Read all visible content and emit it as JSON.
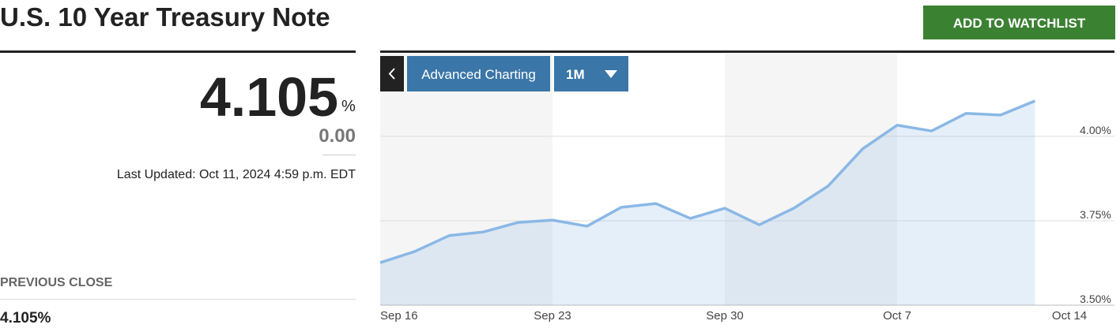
{
  "header": {
    "title": "U.S. 10 Year Treasury Note",
    "button": "ADD TO WATCHLIST"
  },
  "quote": {
    "price": "4.105",
    "unit": "%",
    "change": "0.00",
    "updated": "Last Updated: Oct 11, 2024 4:59 p.m. EDT"
  },
  "previous_close": {
    "label": "PREVIOUS CLOSE",
    "value": "4.105%"
  },
  "toolbar": {
    "advanced": "Advanced Charting",
    "range": "1M"
  },
  "chart_data": {
    "type": "area",
    "categories": [
      "Sep 16",
      null,
      null,
      null,
      null,
      "Sep 23",
      null,
      null,
      null,
      null,
      "Sep 30",
      null,
      null,
      null,
      null,
      "Oct 7",
      null,
      null,
      null,
      null,
      "Oct 14"
    ],
    "series": [
      {
        "name": null,
        "color": "#8ab8e6",
        "values": [
          3.626,
          3.659,
          3.706,
          3.717,
          3.745,
          3.752,
          3.734,
          3.79,
          3.801,
          3.757,
          3.787,
          3.738,
          3.787,
          3.853,
          3.963,
          4.033,
          4.016,
          4.068,
          4.063,
          4.105,
          null
        ]
      }
    ],
    "ylim": [
      3.5,
      4.245
    ],
    "yticks": [
      {
        "value": 3.5,
        "label": "3.50%"
      },
      {
        "value": 3.75,
        "label": "3.75%"
      },
      {
        "value": 4.0,
        "label": "4.00%"
      }
    ],
    "grid": true
  }
}
